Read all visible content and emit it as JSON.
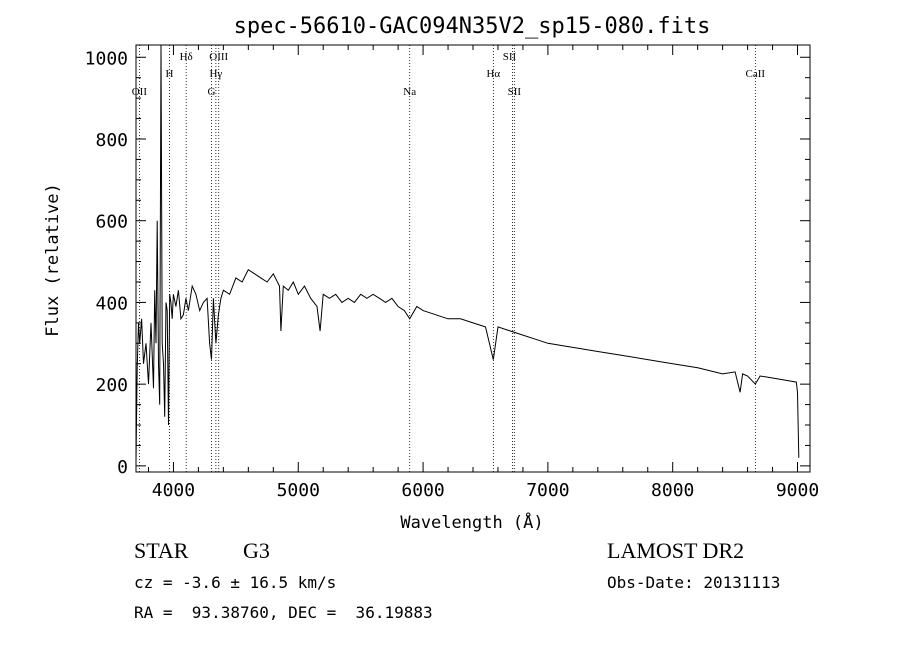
{
  "chart_data": {
    "type": "line",
    "title": "spec-56610-GAC094N35V2_sp15-080.fits",
    "xlabel": "Wavelength (Å)",
    "ylabel": "Flux (relative)",
    "xlim": [
      3700,
      9100
    ],
    "ylim": [
      -15,
      1030
    ],
    "x_ticks": [
      4000,
      5000,
      6000,
      7000,
      8000,
      9000
    ],
    "x_tick_labels": [
      "4000",
      "5000",
      "6000",
      "7000",
      "8000",
      "9000"
    ],
    "y_ticks": [
      0,
      200,
      400,
      600,
      800,
      1000
    ],
    "y_tick_labels": [
      "0",
      "200",
      "400",
      "600",
      "800",
      "1000"
    ],
    "grid": false,
    "line_color": "#000000",
    "marker_color": "#000000",
    "spectral_lines": [
      {
        "name": "OII",
        "x": 3727
      },
      {
        "name": "H",
        "x": 3968
      },
      {
        "name": "Hδ",
        "x": 4102
      },
      {
        "name": "G",
        "x": 4305
      },
      {
        "name": "Hγ",
        "x": 4340
      },
      {
        "name": "OIII",
        "x": 4363
      },
      {
        "name": "Na",
        "x": 5893
      },
      {
        "name": "Hα",
        "x": 6563
      },
      {
        "name": "SII",
        "x": 6716
      },
      {
        "name": "SII",
        "x": 6731
      },
      {
        "name": "CaII",
        "x": 8662
      }
    ],
    "series": [
      {
        "x": [
          3700,
          3710,
          3720,
          3730,
          3745,
          3760,
          3780,
          3800,
          3820,
          3840,
          3850,
          3860,
          3870,
          3880,
          3890,
          3900,
          3910,
          3920,
          3930,
          3940,
          3950,
          3960,
          3970,
          3980,
          3990,
          4000,
          4020,
          4040,
          4060,
          4080,
          4100,
          4120,
          4150,
          4180,
          4210,
          4240,
          4270,
          4290,
          4305,
          4320,
          4340,
          4360,
          4380,
          4400,
          4450,
          4500,
          4550,
          4600,
          4650,
          4700,
          4750,
          4800,
          4850,
          4861,
          4880,
          4920,
          4960,
          5000,
          5050,
          5100,
          5150,
          5175,
          5200,
          5250,
          5300,
          5350,
          5400,
          5450,
          5500,
          5550,
          5600,
          5650,
          5700,
          5750,
          5800,
          5850,
          5893,
          5950,
          6000,
          6100,
          6200,
          6300,
          6400,
          6500,
          6563,
          6600,
          6700,
          6800,
          6900,
          7000,
          7200,
          7400,
          7600,
          7800,
          8000,
          8200,
          8400,
          8500,
          8540,
          8560,
          8600,
          8662,
          8700,
          8800,
          8900,
          8990,
          9000,
          9010
        ],
        "y": [
          10,
          240,
          350,
          300,
          360,
          250,
          300,
          200,
          350,
          190,
          430,
          300,
          600,
          250,
          150,
          1030,
          300,
          250,
          120,
          400,
          380,
          100,
          420,
          400,
          360,
          420,
          390,
          430,
          360,
          370,
          410,
          380,
          440,
          420,
          380,
          400,
          410,
          300,
          260,
          410,
          300,
          370,
          410,
          430,
          420,
          460,
          450,
          480,
          470,
          460,
          450,
          470,
          440,
          330,
          440,
          430,
          450,
          420,
          440,
          410,
          390,
          330,
          420,
          410,
          420,
          400,
          410,
          400,
          420,
          410,
          420,
          410,
          400,
          410,
          390,
          380,
          360,
          390,
          380,
          370,
          360,
          360,
          350,
          340,
          260,
          340,
          330,
          320,
          310,
          300,
          290,
          280,
          270,
          260,
          250,
          240,
          225,
          230,
          180,
          225,
          220,
          200,
          220,
          215,
          210,
          205,
          180,
          20
        ]
      }
    ]
  },
  "info": {
    "object_class": "STAR",
    "subclass": "G3",
    "survey": "LAMOST DR2",
    "redshift_line": "cz = -3.6 ± 16.5 km/s",
    "obs_date_line": "Obs-Date: 20131113",
    "coords_line": "RA =  93.38760, DEC =  36.19883"
  }
}
